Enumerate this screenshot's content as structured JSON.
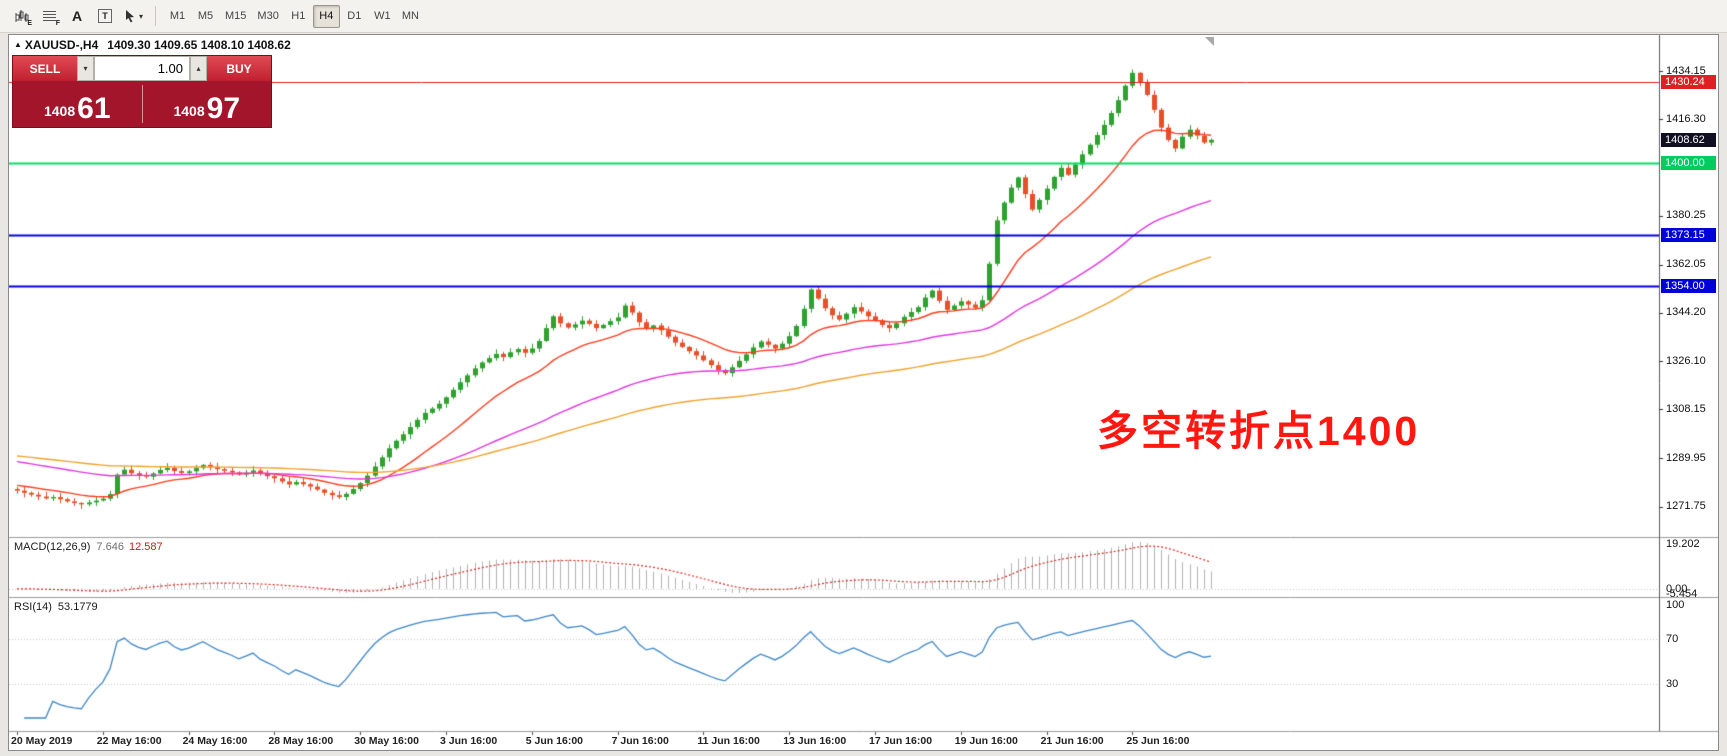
{
  "toolbar": {
    "tool_sub_e": "E",
    "tool_sub_f": "F",
    "tool_a": "A",
    "tool_t": "T",
    "timeframes": [
      "M1",
      "M5",
      "M15",
      "M30",
      "H1",
      "H4",
      "D1",
      "W1",
      "MN"
    ],
    "active_timeframe": "H4"
  },
  "chart": {
    "header": {
      "symbol_period": "XAUUSD-,H4",
      "ohlc": "1409.30 1409.65 1408.10 1408.62"
    },
    "trade_panel": {
      "sell_label": "SELL",
      "buy_label": "BUY",
      "volume": "1.00",
      "sell_price_main": "1408",
      "sell_price_big": "61",
      "buy_price_main": "1408",
      "buy_price_big": "97"
    },
    "annotation": {
      "text": "多空转折点1400",
      "color": "#ff1710"
    }
  },
  "indicators": {
    "macd": {
      "label": "MACD(12,26,9)",
      "value_main": "7.646",
      "value_signal": "12.587",
      "scale_max": "19.202",
      "scale_zero": "0.00",
      "scale_min": "-5.454"
    },
    "rsi": {
      "label": "RSI(14)",
      "value": "53.1779",
      "scale": [
        "100",
        "70",
        "30"
      ]
    }
  },
  "chart_data": {
    "type": "candlestick",
    "symbol": "XAUUSD-",
    "period": "H4",
    "up_color": "#2fa12f",
    "down_color": "#e84e28",
    "price_axis": {
      "min": 1262,
      "max": 1441,
      "ticks": [
        "1434.15",
        "1416.30",
        "1380.25",
        "1362.05",
        "1344.20",
        "1326.10",
        "1308.15",
        "1289.95",
        "1271.75"
      ]
    },
    "hlines": [
      {
        "price": 1430.24,
        "color": "#e02020",
        "width": 1,
        "label": "1430.24",
        "label_bg": "#e02020"
      },
      {
        "price": 1400.0,
        "color": "#00e064",
        "width": 2,
        "label": "1400.00",
        "label_bg": "#00cd5e"
      },
      {
        "price": 1373.15,
        "color": "#0000d8",
        "width": 2,
        "label": "1373.15",
        "label_bg": "#0000d8"
      },
      {
        "price": 1354.0,
        "color": "#0000d8",
        "width": 2,
        "label": "1354.00",
        "label_bg": "#0000d8"
      }
    ],
    "current_price": {
      "value": "1408.62",
      "price": 1408.62,
      "bg": "#101022"
    },
    "moving_averages": [
      {
        "name": "fast",
        "period": 16,
        "seed": 1280,
        "color": "#ff3c1e"
      },
      {
        "name": "mid",
        "period": 55,
        "seed": 1289,
        "color": "#e236e2"
      },
      {
        "name": "slow",
        "period": 100,
        "seed": 1291,
        "color": "#efa32f"
      }
    ],
    "time_labels": [
      "20 May 2019",
      "22 May 16:00",
      "24 May 16:00",
      "28 May 16:00",
      "30 May 16:00",
      "3 Jun 16:00",
      "5 Jun 16:00",
      "7 Jun 16:00",
      "11 Jun 16:00",
      "13 Jun 16:00",
      "17 Jun 16:00",
      "19 Jun 16:00",
      "21 Jun 16:00",
      "25 Jun 16:00"
    ],
    "closes": [
      1277.8,
      1277.0,
      1276.3,
      1275.6,
      1274.9,
      1275.4,
      1274.6,
      1273.8,
      1273.2,
      1272.7,
      1273.4,
      1274.1,
      1274.8,
      1276.5,
      1283.8,
      1285.6,
      1284.3,
      1283.5,
      1283.0,
      1284.2,
      1285.5,
      1286.3,
      1285.1,
      1284.4,
      1285.0,
      1286.2,
      1287.4,
      1286.6,
      1285.8,
      1285.2,
      1284.6,
      1283.8,
      1284.5,
      1285.3,
      1284.0,
      1283.2,
      1282.4,
      1281.2,
      1280.1,
      1281.0,
      1280.2,
      1279.3,
      1278.2,
      1277.0,
      1276.1,
      1275.4,
      1276.6,
      1278.4,
      1280.6,
      1283.4,
      1286.8,
      1290.2,
      1293.6,
      1296.4,
      1298.8,
      1301.5,
      1304.2,
      1306.8,
      1308.4,
      1310.2,
      1312.6,
      1315.4,
      1318.2,
      1320.8,
      1323.4,
      1325.6,
      1327.2,
      1328.8,
      1327.6,
      1329.4,
      1330.6,
      1329.2,
      1330.8,
      1333.6,
      1338.4,
      1342.8,
      1340.2,
      1338.6,
      1339.8,
      1341.2,
      1340.0,
      1338.4,
      1339.6,
      1341.0,
      1342.4,
      1346.8,
      1344.2,
      1340.6,
      1338.2,
      1339.4,
      1337.6,
      1335.2,
      1333.0,
      1331.4,
      1329.8,
      1328.2,
      1326.4,
      1324.6,
      1322.8,
      1321.6,
      1323.8,
      1326.2,
      1328.6,
      1331.2,
      1333.4,
      1332.2,
      1330.8,
      1332.6,
      1335.4,
      1339.2,
      1345.6,
      1352.8,
      1349.4,
      1345.8,
      1343.2,
      1341.6,
      1343.8,
      1346.2,
      1344.6,
      1342.8,
      1341.2,
      1339.6,
      1338.4,
      1340.2,
      1342.6,
      1344.4,
      1346.2,
      1349.8,
      1352.4,
      1348.6,
      1345.2,
      1346.8,
      1348.4,
      1347.2,
      1346.0,
      1348.8,
      1362.4,
      1378.6,
      1385.2,
      1390.8,
      1394.6,
      1388.4,
      1382.6,
      1386.2,
      1390.4,
      1394.8,
      1398.2,
      1395.6,
      1399.4,
      1403.2,
      1406.8,
      1410.4,
      1414.2,
      1418.6,
      1423.4,
      1428.8,
      1433.6,
      1430.2,
      1425.4,
      1419.8,
      1413.2,
      1408.6,
      1405.4,
      1409.8,
      1412.4,
      1410.2,
      1407.6,
      1408.62
    ]
  }
}
